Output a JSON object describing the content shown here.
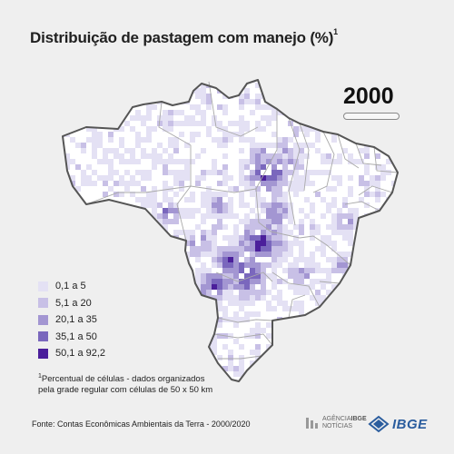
{
  "title": {
    "text": "Distribuição de pastagem com manejo (%)",
    "marker": "1"
  },
  "year": "2000",
  "legend": [
    {
      "label": "0,1 a 5",
      "color": "#e4e1f4"
    },
    {
      "label": "5,1 a 20",
      "color": "#c8c0e6"
    },
    {
      "label": "20,1 a 35",
      "color": "#a396d2"
    },
    {
      "label": "35,1 a 50",
      "color": "#7a67bd"
    },
    {
      "label": "50,1 a 92,2",
      "color": "#4b1f9b"
    }
  ],
  "footnote": {
    "marker": "1",
    "line1": "Percentual de células - dados organizados",
    "line2": "pela grade regular com células de 50 x 50 km"
  },
  "source": "Fonte: Contas Econômicas  Ambientais  da Terra - 2000/2020",
  "logos": {
    "agencia_line1": "AGÊNCIA",
    "agencia_brand": "IBGE",
    "agencia_line2": "NOTÍCIAS",
    "ibge": "IBGE"
  },
  "map": {
    "country": "Brasil",
    "land_color": "#ffffff",
    "border_color": "#555555",
    "hotspots": [
      {
        "region": "sul do Pará",
        "level": 5
      },
      {
        "region": "Rondônia",
        "level": 5
      },
      {
        "region": "Mato Grosso",
        "level": 5
      },
      {
        "region": "Mato Grosso do Sul",
        "level": 5
      },
      {
        "region": "Goiás",
        "level": 4
      },
      {
        "region": "Maranhão",
        "level": 4
      },
      {
        "region": "Bahia",
        "level": 3
      }
    ]
  }
}
